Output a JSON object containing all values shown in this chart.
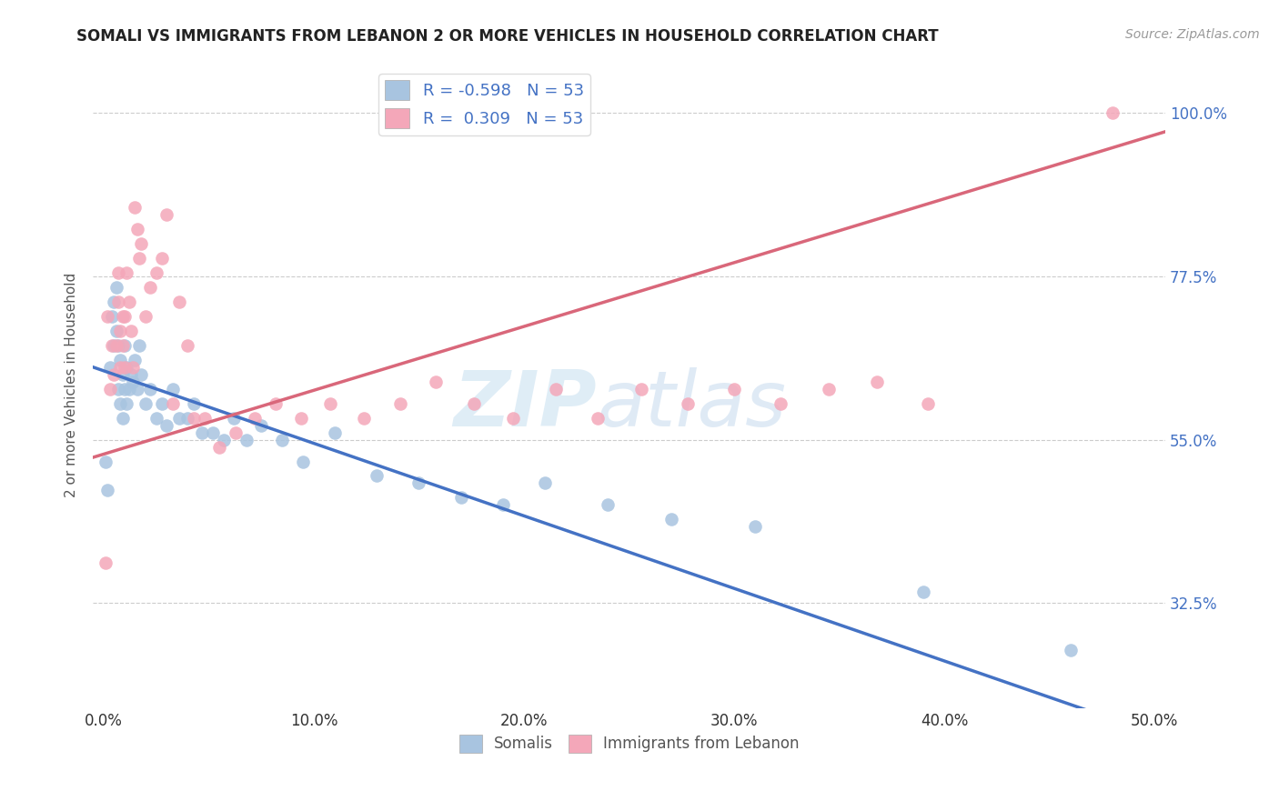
{
  "title": "SOMALI VS IMMIGRANTS FROM LEBANON 2 OR MORE VEHICLES IN HOUSEHOLD CORRELATION CHART",
  "source": "Source: ZipAtlas.com",
  "xlabel_ticks": [
    "0.0%",
    "10.0%",
    "20.0%",
    "30.0%",
    "40.0%",
    "50.0%"
  ],
  "xlabel_vals": [
    0.0,
    0.1,
    0.2,
    0.3,
    0.4,
    0.5
  ],
  "ylabel": "2 or more Vehicles in Household",
  "ylabel_ticks": [
    "32.5%",
    "55.0%",
    "77.5%",
    "100.0%"
  ],
  "ylabel_vals": [
    0.325,
    0.55,
    0.775,
    1.0
  ],
  "ylim": [
    0.18,
    1.07
  ],
  "xlim": [
    -0.005,
    0.505
  ],
  "r_somali": -0.598,
  "n_somali": 53,
  "r_lebanon": 0.309,
  "n_lebanon": 53,
  "color_somali": "#a8c4e0",
  "color_lebanon": "#f4a7b9",
  "line_color_somali": "#4472c4",
  "line_color_lebanon": "#d9677a",
  "watermark_zip": "ZIP",
  "watermark_atlas": "atlas",
  "legend_label_somali": "Somalis",
  "legend_label_lebanon": "Immigrants from Lebanon",
  "somali_x": [
    0.001,
    0.002,
    0.003,
    0.004,
    0.005,
    0.005,
    0.006,
    0.006,
    0.007,
    0.007,
    0.008,
    0.008,
    0.009,
    0.009,
    0.01,
    0.01,
    0.011,
    0.011,
    0.012,
    0.013,
    0.014,
    0.015,
    0.016,
    0.017,
    0.018,
    0.02,
    0.022,
    0.025,
    0.028,
    0.03,
    0.033,
    0.036,
    0.04,
    0.043,
    0.047,
    0.052,
    0.057,
    0.062,
    0.068,
    0.075,
    0.085,
    0.095,
    0.11,
    0.13,
    0.15,
    0.17,
    0.19,
    0.21,
    0.24,
    0.27,
    0.31,
    0.39,
    0.46
  ],
  "somali_y": [
    0.52,
    0.48,
    0.65,
    0.72,
    0.74,
    0.68,
    0.76,
    0.7,
    0.62,
    0.68,
    0.6,
    0.66,
    0.64,
    0.58,
    0.68,
    0.62,
    0.65,
    0.6,
    0.62,
    0.64,
    0.63,
    0.66,
    0.62,
    0.68,
    0.64,
    0.6,
    0.62,
    0.58,
    0.6,
    0.57,
    0.62,
    0.58,
    0.58,
    0.6,
    0.56,
    0.56,
    0.55,
    0.58,
    0.55,
    0.57,
    0.55,
    0.52,
    0.56,
    0.5,
    0.49,
    0.47,
    0.46,
    0.49,
    0.46,
    0.44,
    0.43,
    0.34,
    0.26
  ],
  "lebanon_x": [
    0.001,
    0.002,
    0.003,
    0.004,
    0.005,
    0.006,
    0.007,
    0.007,
    0.008,
    0.008,
    0.009,
    0.009,
    0.01,
    0.01,
    0.011,
    0.012,
    0.013,
    0.014,
    0.015,
    0.016,
    0.017,
    0.018,
    0.02,
    0.022,
    0.025,
    0.028,
    0.03,
    0.033,
    0.036,
    0.04,
    0.043,
    0.048,
    0.055,
    0.063,
    0.072,
    0.082,
    0.094,
    0.108,
    0.124,
    0.141,
    0.158,
    0.176,
    0.195,
    0.215,
    0.235,
    0.256,
    0.278,
    0.3,
    0.322,
    0.345,
    0.368,
    0.392,
    0.48
  ],
  "lebanon_y": [
    0.38,
    0.72,
    0.62,
    0.68,
    0.64,
    0.68,
    0.78,
    0.74,
    0.65,
    0.7,
    0.72,
    0.68,
    0.72,
    0.65,
    0.78,
    0.74,
    0.7,
    0.65,
    0.87,
    0.84,
    0.8,
    0.82,
    0.72,
    0.76,
    0.78,
    0.8,
    0.86,
    0.6,
    0.74,
    0.68,
    0.58,
    0.58,
    0.54,
    0.56,
    0.58,
    0.6,
    0.58,
    0.6,
    0.58,
    0.6,
    0.63,
    0.6,
    0.58,
    0.62,
    0.58,
    0.62,
    0.6,
    0.62,
    0.6,
    0.62,
    0.63,
    0.6,
    1.0
  ]
}
